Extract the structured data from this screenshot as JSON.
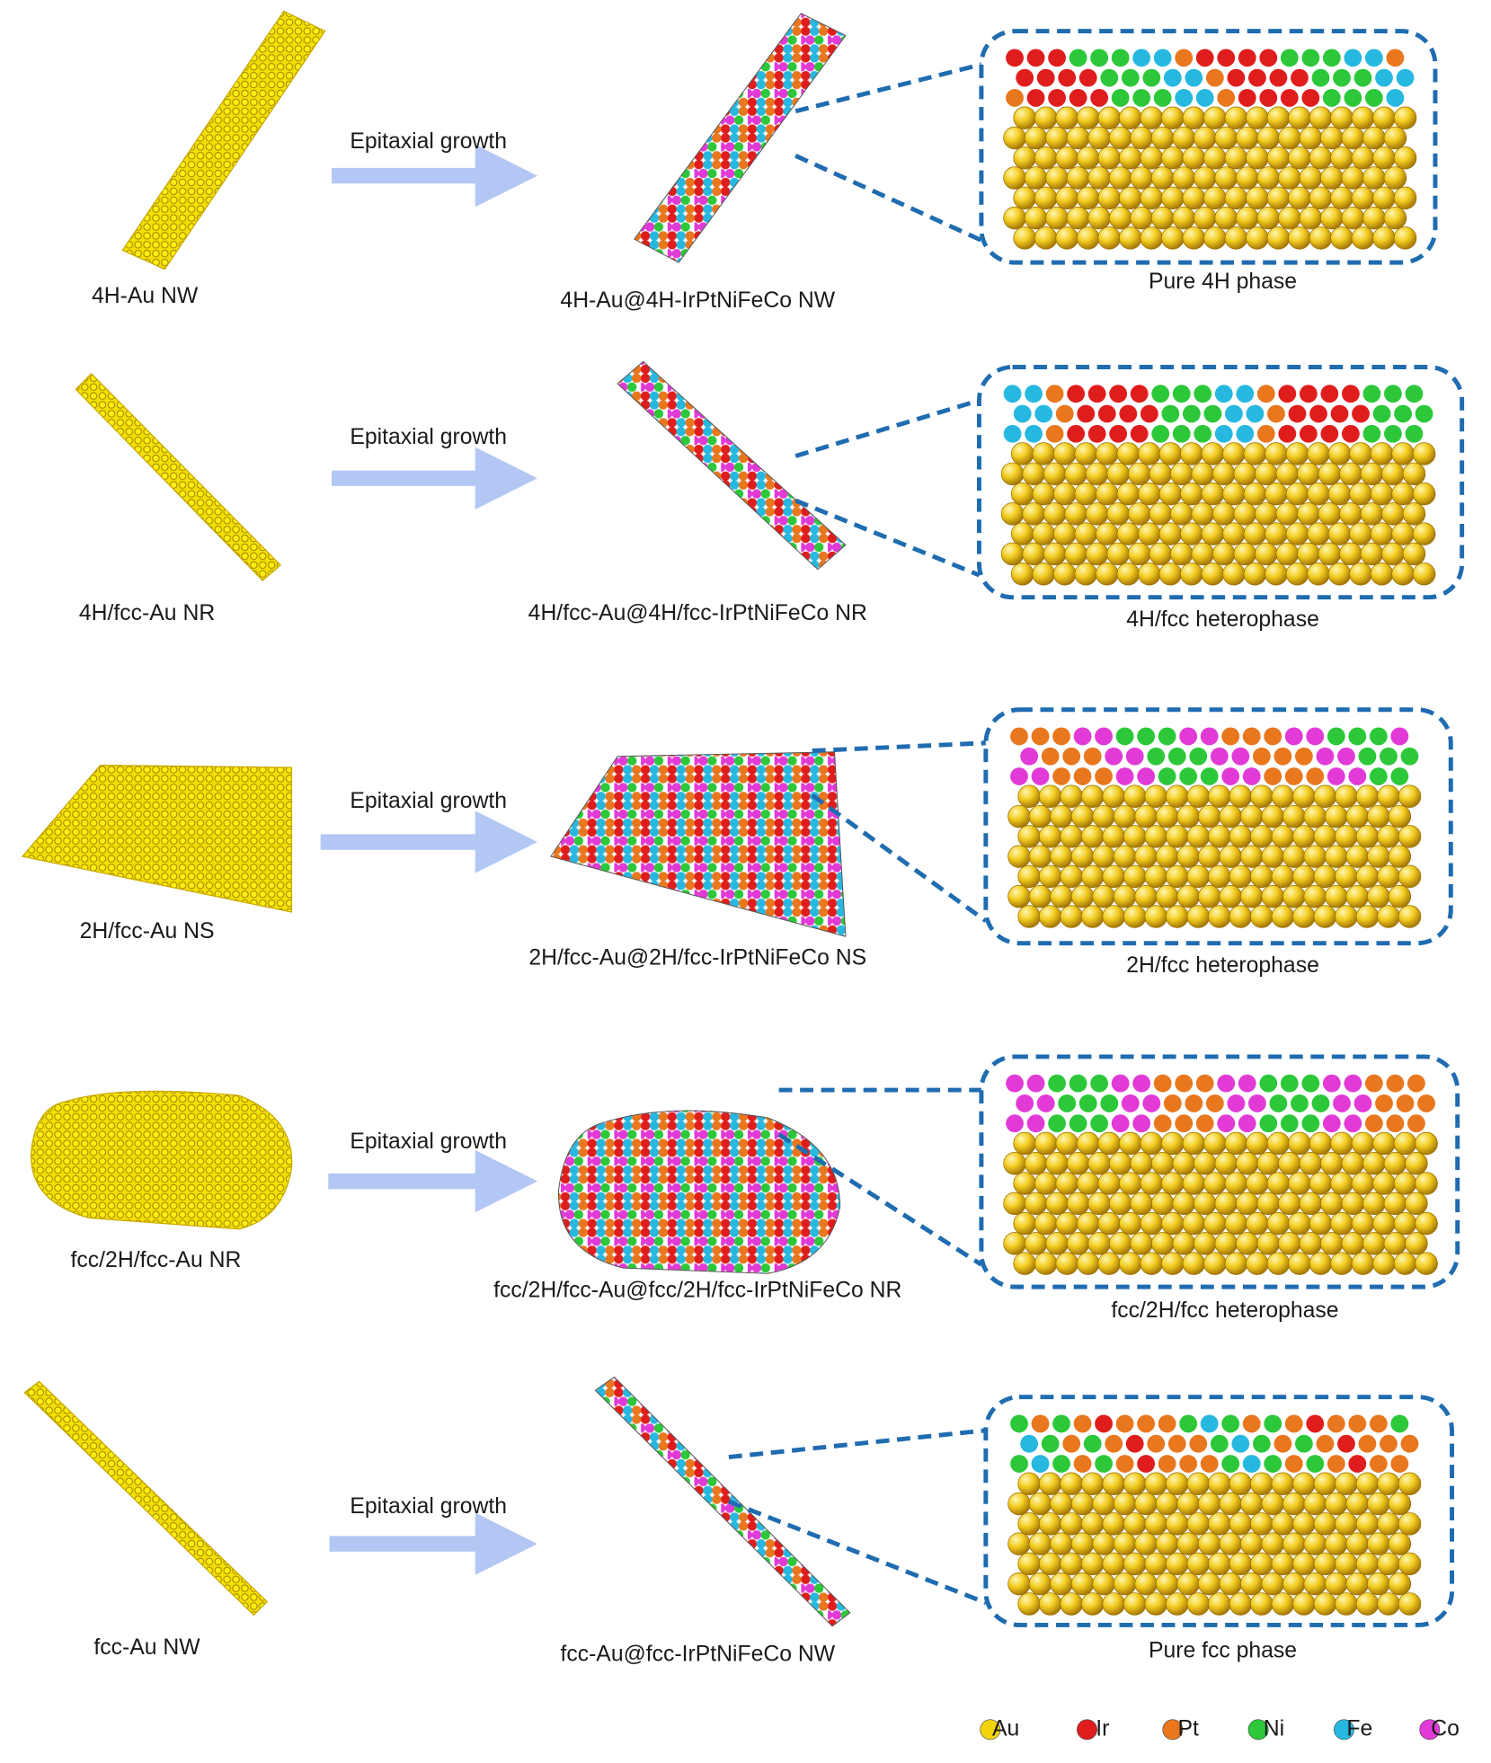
{
  "rows": [
    {
      "precursor": "4H-Au NW",
      "process": "Epitaxial growth",
      "product": "4H-Au@4H-IrPtNiFeCo NW",
      "phase": "Pure 4H phase"
    },
    {
      "precursor": "4H/fcc-Au NR",
      "process": "Epitaxial growth",
      "product": "4H/fcc-Au@4H/fcc-IrPtNiFeCo NR",
      "phase": "4H/fcc heterophase"
    },
    {
      "precursor": "2H/fcc-Au NS",
      "process": "Epitaxial growth",
      "product": "2H/fcc-Au@2H/fcc-IrPtNiFeCo NS",
      "phase": "2H/fcc heterophase"
    },
    {
      "precursor": "fcc/2H/fcc-Au NR",
      "process": "Epitaxial growth",
      "product": "fcc/2H/fcc-Au@fcc/2H/fcc-IrPtNiFeCo NR",
      "phase": "fcc/2H/fcc heterophase"
    },
    {
      "precursor": "fcc-Au NW",
      "process": "Epitaxial growth",
      "product": "fcc-Au@fcc-IrPtNiFeCo NW",
      "phase": "Pure fcc phase"
    }
  ],
  "legend": [
    {
      "label": "Au",
      "color": "#f2d40c"
    },
    {
      "label": "Ir",
      "color": "#e01d1d"
    },
    {
      "label": "Pt",
      "color": "#e8771e"
    },
    {
      "label": "Ni",
      "color": "#2cc83a"
    },
    {
      "label": "Fe",
      "color": "#27b8e0"
    },
    {
      "label": "Co",
      "color": "#e23ad6"
    }
  ]
}
